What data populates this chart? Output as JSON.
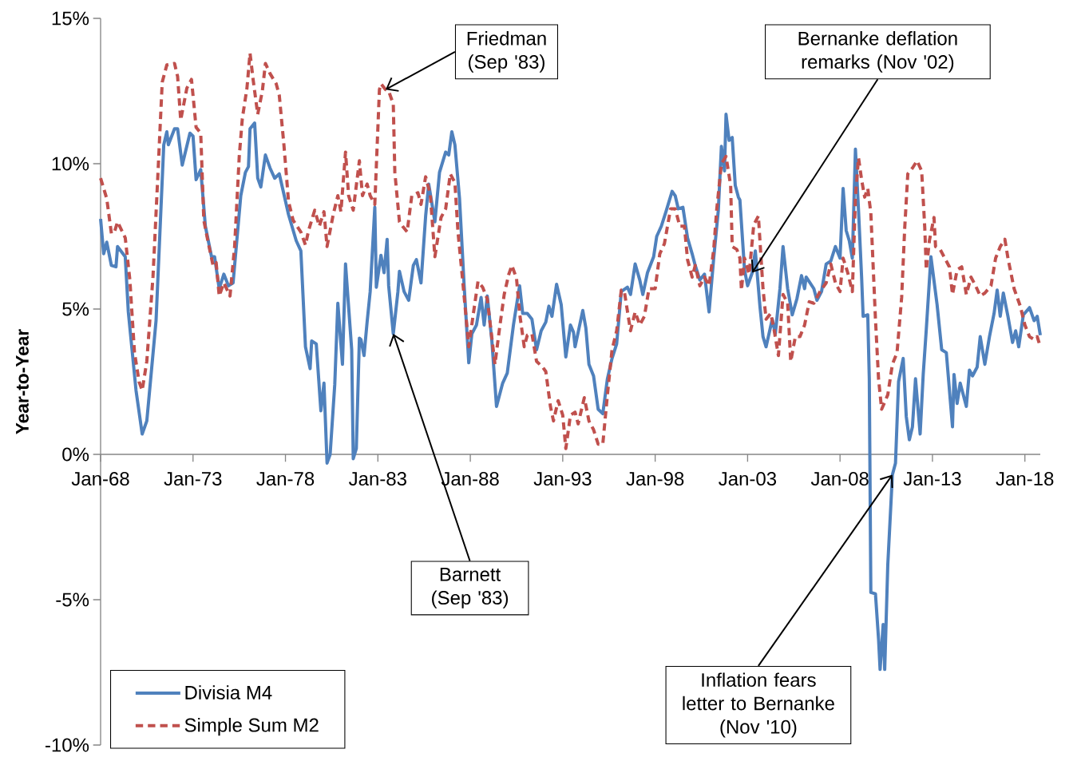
{
  "chart_data": {
    "type": "line",
    "ylabel": "Year-to-Year",
    "xlim": [
      "1968-01",
      "2018-11"
    ],
    "ylim": [
      -10,
      15
    ],
    "xticks": [
      {
        "value": "1968-01",
        "label": "Jan-68"
      },
      {
        "value": "1973-01",
        "label": "Jan-73"
      },
      {
        "value": "1978-01",
        "label": "Jan-78"
      },
      {
        "value": "1983-01",
        "label": "Jan-83"
      },
      {
        "value": "1988-01",
        "label": "Jan-88"
      },
      {
        "value": "1993-01",
        "label": "Jan-93"
      },
      {
        "value": "1998-01",
        "label": "Jan-98"
      },
      {
        "value": "2003-01",
        "label": "Jan-03"
      },
      {
        "value": "2008-01",
        "label": "Jan-08"
      },
      {
        "value": "2013-01",
        "label": "Jan-13"
      },
      {
        "value": "2018-01",
        "label": "Jan-18"
      }
    ],
    "yticks": [
      {
        "value": -10,
        "label": "-10%"
      },
      {
        "value": -5,
        "label": "-5%"
      },
      {
        "value": 0,
        "label": "0%"
      },
      {
        "value": 5,
        "label": "5%"
      },
      {
        "value": 10,
        "label": "10%"
      },
      {
        "value": 15,
        "label": "15%"
      }
    ],
    "legend": "bottom left",
    "annotations": [
      {
        "text": "Friedman (Sep '83)",
        "x": "1983-06",
        "y": 12.55
      },
      {
        "text": "Barnett (Sep '83)",
        "x": "1983-11",
        "y": 4.15
      },
      {
        "text": "Bernanke deflation remarks (Nov '02)",
        "x": "2003-04",
        "y": 6.25
      },
      {
        "text": "Inflation fears letter to Bernanke (Nov '10)",
        "x": "2010-11",
        "y": -0.7
      }
    ],
    "series": [
      {
        "name": "Divisia M4",
        "color": "#4f81bd",
        "line_style": "solid",
        "x": [
          "1968-01",
          "1968-03",
          "1968-05",
          "1968-08",
          "1968-11",
          "1968-12",
          "1969-05",
          "1969-07",
          "1969-12",
          "1970-04",
          "1970-07",
          "1971-01",
          "1971-06",
          "1971-08",
          "1971-09",
          "1972-01",
          "1972-03",
          "1972-06",
          "1972-11",
          "1973-01",
          "1973-03",
          "1973-06",
          "1973-09",
          "1974-01",
          "1974-03",
          "1974-06",
          "1974-09",
          "1974-12",
          "1975-03",
          "1975-08",
          "1975-11",
          "1976-01",
          "1976-02",
          "1976-05",
          "1976-07",
          "1976-09",
          "1976-12",
          "1977-03",
          "1977-06",
          "1977-09",
          "1978-03",
          "1978-08",
          "1978-11",
          "1979-02",
          "1979-05",
          "1979-06",
          "1979-09",
          "1979-12",
          "1980-02",
          "1980-04",
          "1980-06",
          "1980-09",
          "1980-11",
          "1981-02",
          "1981-04",
          "1981-08",
          "1981-09",
          "1981-11",
          "1982-01",
          "1982-02",
          "1982-04",
          "1982-06",
          "1982-08",
          "1982-11",
          "1982-12",
          "1983-03",
          "1983-05",
          "1983-07",
          "1983-08",
          "1983-11",
          "1984-02",
          "1984-03",
          "1984-06",
          "1984-09",
          "1984-12",
          "1985-02",
          "1985-05",
          "1985-08",
          "1985-10",
          "1986-02",
          "1986-05",
          "1986-09",
          "1986-11",
          "1987-01",
          "1987-03",
          "1987-06",
          "1987-09",
          "1987-12",
          "1988-02",
          "1988-05",
          "1988-08",
          "1988-10",
          "1988-12",
          "1989-03",
          "1989-06",
          "1989-10",
          "1990-01",
          "1990-05",
          "1990-09",
          "1990-11",
          "1991-02",
          "1991-05",
          "1991-08",
          "1991-11",
          "1992-02",
          "1992-04",
          "1992-06",
          "1992-09",
          "1992-12",
          "1993-03",
          "1993-06",
          "1993-08",
          "1993-09",
          "1994-02",
          "1994-04",
          "1994-06",
          "1994-09",
          "1994-12",
          "1995-03",
          "1995-06",
          "1995-09",
          "1995-12",
          "1996-03",
          "1996-07",
          "1996-09",
          "1996-12",
          "1997-03",
          "1997-05",
          "1997-08",
          "1997-12",
          "1998-02",
          "1998-05",
          "1998-08",
          "1998-12",
          "1999-02",
          "1999-04",
          "1999-07",
          "1999-10",
          "2000-01",
          "2000-03",
          "2000-06",
          "2000-09",
          "2000-12",
          "2001-03",
          "2001-06",
          "2001-08",
          "2001-10",
          "2001-11",
          "2002-01",
          "2002-03",
          "2002-05",
          "2002-07",
          "2002-08",
          "2002-11",
          "2003-01",
          "2003-04",
          "2003-06",
          "2003-09",
          "2003-11",
          "2004-01",
          "2004-05",
          "2004-07",
          "2004-10",
          "2004-12",
          "2005-03",
          "2005-06",
          "2005-09",
          "2005-12",
          "2006-02",
          "2006-03",
          "2006-08",
          "2006-10",
          "2007-01",
          "2007-04",
          "2007-07",
          "2007-10",
          "2008-01",
          "2008-03",
          "2008-05",
          "2008-07",
          "2008-09",
          "2008-11",
          "2009-01",
          "2009-03",
          "2009-04",
          "2009-07",
          "2009-08",
          "2009-09",
          "2009-12",
          "2010-02",
          "2010-03",
          "2010-05",
          "2010-06",
          "2010-08",
          "2010-11",
          "2011-01",
          "2011-03",
          "2011-06",
          "2011-08",
          "2011-10",
          "2011-12",
          "2012-02",
          "2012-05",
          "2012-07",
          "2012-09",
          "2012-12",
          "2013-04",
          "2013-07",
          "2013-10",
          "2014-02",
          "2014-03",
          "2014-05",
          "2014-07",
          "2014-11",
          "2015-01",
          "2015-03",
          "2015-06",
          "2015-08",
          "2015-11",
          "2016-02",
          "2016-05",
          "2016-07",
          "2016-09",
          "2016-11",
          "2017-02",
          "2017-05",
          "2017-07",
          "2017-09",
          "2017-12",
          "2018-04",
          "2018-07",
          "2018-09",
          "2018-11"
        ],
        "values": [
          8.1,
          6.9,
          7.3,
          6.5,
          6.45,
          7.15,
          6.8,
          4.9,
          2.2,
          0.7,
          1.15,
          4.6,
          10.65,
          11.1,
          10.65,
          11.2,
          11.2,
          9.95,
          11.05,
          10.95,
          9.45,
          9.8,
          7.85,
          6.8,
          6.8,
          5.7,
          6.2,
          5.8,
          5.9,
          8.9,
          9.7,
          9.9,
          11.2,
          11.4,
          9.5,
          9.2,
          10.3,
          9.85,
          9.5,
          9.65,
          8.25,
          7.35,
          7.0,
          3.7,
          2.95,
          3.9,
          3.8,
          1.5,
          2.45,
          -0.3,
          0,
          2.4,
          5.2,
          3.1,
          6.55,
          3.6,
          -0.15,
          0.2,
          4.0,
          3.95,
          3.4,
          4.55,
          5.6,
          8.5,
          5.75,
          6.85,
          6.25,
          7.4,
          5.8,
          4.15,
          5.6,
          6.3,
          5.6,
          5.3,
          6.5,
          6.7,
          5.9,
          8.2,
          9.3,
          8.0,
          9.7,
          10.4,
          10.3,
          11.1,
          10.65,
          8.8,
          5.8,
          3.15,
          4.15,
          4.45,
          5.4,
          4.45,
          5.45,
          3.9,
          1.65,
          2.45,
          2.8,
          4.45,
          5.8,
          4.85,
          4.85,
          4.65,
          3.6,
          4.25,
          4.55,
          5.1,
          4.75,
          5.85,
          5.15,
          3.35,
          4.45,
          4.2,
          3.7,
          4.95,
          4.35,
          3.1,
          2.7,
          1.55,
          1.4,
          2.6,
          3.3,
          3.8,
          5.6,
          5.75,
          5.5,
          6.55,
          6.0,
          5.5,
          6.25,
          6.8,
          7.5,
          7.85,
          8.35,
          9.05,
          8.9,
          8.45,
          8.5,
          7.45,
          6.9,
          6.5,
          6.0,
          6.2,
          4.9,
          6.75,
          8.4,
          10.6,
          9.75,
          11.7,
          10.8,
          10.9,
          9.25,
          8.85,
          8.75,
          6.35,
          5.8,
          6.25,
          7.0,
          5.1,
          4.05,
          3.7,
          4.65,
          4.15,
          5.7,
          7.15,
          5.7,
          4.8,
          5.35,
          6.15,
          5.7,
          6.1,
          5.7,
          5.3,
          5.6,
          6.55,
          6.65,
          7.15,
          6.75,
          9.15,
          7.7,
          7.35,
          6.75,
          10.5,
          8.4,
          6.1,
          4.75,
          4.8,
          2.6,
          -4.75,
          -4.8,
          -6.35,
          -7.4,
          -5.85,
          -7.4,
          -3.8,
          -0.7,
          -0.3,
          2.5,
          3.3,
          1.3,
          0.5,
          0.95,
          2.6,
          0.7,
          2.75,
          4.3,
          6.8,
          5.15,
          3.6,
          3.5,
          0.95,
          2.75,
          1.75,
          2.45,
          1.65,
          2.9,
          2.7,
          3.0,
          4.05,
          3.1,
          4.05,
          4.85,
          5.65,
          4.75,
          5.55,
          4.75,
          3.85,
          4.25,
          3.7,
          4.8,
          5.05,
          4.6,
          4.75,
          4.1
        ]
      },
      {
        "name": "Simple Sum M2",
        "color": "#c0504d",
        "line_style": "dashed",
        "x": [
          "1968-01",
          "1968-05",
          "1968-08",
          "1968-10",
          "1968-12",
          "1969-05",
          "1969-08",
          "1969-11",
          "1970-02",
          "1970-04",
          "1970-07",
          "1970-11",
          "1971-02",
          "1971-05",
          "1971-08",
          "1972-01",
          "1972-03",
          "1972-05",
          "1972-09",
          "1972-12",
          "1973-03",
          "1973-06",
          "1973-08",
          "1973-11",
          "1974-02",
          "1974-04",
          "1974-06",
          "1974-09",
          "1975-01",
          "1975-04",
          "1975-07",
          "1975-09",
          "1975-12",
          "1976-02",
          "1976-04",
          "1976-07",
          "1976-10",
          "1976-12",
          "1977-03",
          "1977-07",
          "1977-09",
          "1977-12",
          "1978-03",
          "1978-06",
          "1978-11",
          "1979-02",
          "1979-04",
          "1979-08",
          "1979-11",
          "1980-02",
          "1980-04",
          "1980-08",
          "1980-11",
          "1981-01",
          "1981-04",
          "1981-06",
          "1981-09",
          "1982-01",
          "1982-03",
          "1982-06",
          "1982-08",
          "1982-11",
          "1983-02",
          "1983-03",
          "1983-06",
          "1983-08",
          "1983-11",
          "1983-12",
          "1984-03",
          "1984-05",
          "1984-08",
          "1984-11",
          "1985-03",
          "1985-05",
          "1985-08",
          "1985-11",
          "1986-02",
          "1986-06",
          "1986-09",
          "1986-12",
          "1987-03",
          "1987-05",
          "1987-08",
          "1987-12",
          "1988-03",
          "1988-06",
          "1988-09",
          "1988-12",
          "1989-05",
          "1989-08",
          "1989-11",
          "1990-02",
          "1990-04",
          "1990-07",
          "1990-09",
          "1990-12",
          "1991-02",
          "1991-05",
          "1991-08",
          "1991-12",
          "1992-02",
          "1992-05",
          "1992-07",
          "1992-10",
          "1993-01",
          "1993-03",
          "1993-06",
          "1993-09",
          "1993-11",
          "1994-03",
          "1994-06",
          "1994-09",
          "1994-12",
          "1995-03",
          "1995-06",
          "1995-09",
          "1995-12",
          "1996-03",
          "1996-05",
          "1996-09",
          "1996-12",
          "1997-03",
          "1997-06",
          "1997-09",
          "1998-01",
          "1998-04",
          "1998-07",
          "1998-11",
          "1999-02",
          "1999-05",
          "1999-08",
          "1999-10",
          "2000-01",
          "2000-03",
          "2000-06",
          "2000-09",
          "2000-12",
          "2001-03",
          "2001-05",
          "2001-08",
          "2001-11",
          "2002-02",
          "2002-03",
          "2002-06",
          "2002-08",
          "2002-09",
          "2002-11",
          "2003-02",
          "2003-05",
          "2003-08",
          "2003-11",
          "2004-01",
          "2004-04",
          "2004-06",
          "2004-09",
          "2004-12",
          "2005-03",
          "2005-05",
          "2005-08",
          "2005-11",
          "2006-02",
          "2006-05",
          "2006-08",
          "2006-12",
          "2007-04",
          "2007-07",
          "2007-10",
          "2008-01",
          "2008-03",
          "2008-06",
          "2008-09",
          "2008-11",
          "2009-01",
          "2009-03",
          "2009-05",
          "2009-07",
          "2009-09",
          "2009-12",
          "2010-02",
          "2010-04",
          "2010-08",
          "2010-11",
          "2011-02",
          "2011-05",
          "2011-07",
          "2011-09",
          "2011-12",
          "2012-03",
          "2012-06",
          "2012-08",
          "2012-09",
          "2012-11",
          "2013-02",
          "2013-03",
          "2013-06",
          "2013-09",
          "2013-12",
          "2014-02",
          "2014-05",
          "2014-08",
          "2014-11",
          "2015-02",
          "2015-05",
          "2015-08",
          "2015-11",
          "2016-03",
          "2016-06",
          "2016-09",
          "2016-12",
          "2017-02",
          "2017-06",
          "2017-10",
          "2018-01",
          "2018-04",
          "2018-07",
          "2018-09",
          "2018-11"
        ],
        "values": [
          9.5,
          8.8,
          7.6,
          7.65,
          8.0,
          7.45,
          6.0,
          3.5,
          2.5,
          2.2,
          3.2,
          6.1,
          9.4,
          12.8,
          13.4,
          13.45,
          13.0,
          11.5,
          12.6,
          12.9,
          11.25,
          11.05,
          8.05,
          7.25,
          6.5,
          6.6,
          5.45,
          5.9,
          5.45,
          7.15,
          10.25,
          11.55,
          12.6,
          13.8,
          12.9,
          11.7,
          12.5,
          13.45,
          13.1,
          12.75,
          12.35,
          10.65,
          8.7,
          8.05,
          7.65,
          7.2,
          7.7,
          8.4,
          7.85,
          8.35,
          7.15,
          8.25,
          8.9,
          8.35,
          10.4,
          8.9,
          8.4,
          10.1,
          8.9,
          9.3,
          8.9,
          8.6,
          12.55,
          12.75,
          12.55,
          12.5,
          12.05,
          9.7,
          8.0,
          7.85,
          7.65,
          8.9,
          9.0,
          8.6,
          9.55,
          8.95,
          6.8,
          8.15,
          8.45,
          9.65,
          9.35,
          7.65,
          6.0,
          3.7,
          4.85,
          5.95,
          5.75,
          5.35,
          3.1,
          4.35,
          5.5,
          6.2,
          6.5,
          6.05,
          4.85,
          3.7,
          4.1,
          4.15,
          3.2,
          3.0,
          2.85,
          1.65,
          1.15,
          1.85,
          1.35,
          0.2,
          1.35,
          1.45,
          1.05,
          1.95,
          1.15,
          0.85,
          0.35,
          0.35,
          2.05,
          3.6,
          4.25,
          5.65,
          5.6,
          4.25,
          4.9,
          4.45,
          4.75,
          5.7,
          5.7,
          6.9,
          7.25,
          8.45,
          8.45,
          7.85,
          7.85,
          6.7,
          6.1,
          6.5,
          5.8,
          6.1,
          5.8,
          7.05,
          8.45,
          10.0,
          10.25,
          9.25,
          7.15,
          7.05,
          6.75,
          5.65,
          6.75,
          6.2,
          7.9,
          8.2,
          5.7,
          4.65,
          4.85,
          4.35,
          3.4,
          5.5,
          5.2,
          3.2,
          4.05,
          4.05,
          4.45,
          5.25,
          5.2,
          5.6,
          5.9,
          6.55,
          5.9,
          5.6,
          6.75,
          6.25,
          5.6,
          8.85,
          10.2,
          9.45,
          8.85,
          9.15,
          8.3,
          4.65,
          2.6,
          1.55,
          2.05,
          3.1,
          3.5,
          5.4,
          7.8,
          9.65,
          9.85,
          10.1,
          9.75,
          7.8,
          6.35,
          7.35,
          8.15,
          7.15,
          7.05,
          6.75,
          6.45,
          5.5,
          6.35,
          6.45,
          5.5,
          6.1,
          5.8,
          5.45,
          5.55,
          5.8,
          6.75,
          7.15,
          7.4,
          6.75,
          5.7,
          5.1,
          4.45,
          4.05,
          3.95,
          4.05,
          3.7
        ]
      }
    ]
  }
}
